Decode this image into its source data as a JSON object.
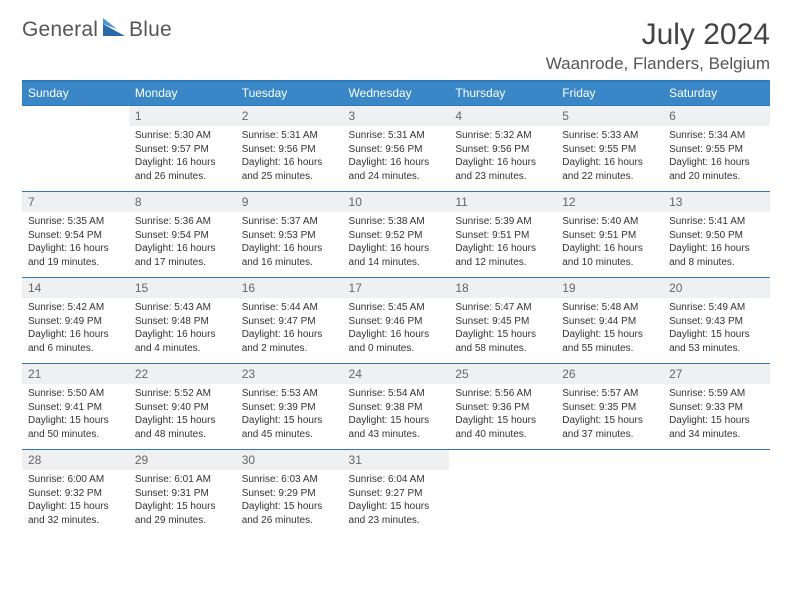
{
  "brand": {
    "part1": "General",
    "part2": "Blue"
  },
  "title": "July 2024",
  "location": "Waanrode, Flanders, Belgium",
  "colors": {
    "header_bg": "#3a87c8",
    "rule": "#2f79b8",
    "daynum_bg": "#eef0f2"
  },
  "day_headers": [
    "Sunday",
    "Monday",
    "Tuesday",
    "Wednesday",
    "Thursday",
    "Friday",
    "Saturday"
  ],
  "weeks": [
    [
      null,
      {
        "n": "1",
        "sr": "5:30 AM",
        "ss": "9:57 PM",
        "dl": "16 hours and 26 minutes."
      },
      {
        "n": "2",
        "sr": "5:31 AM",
        "ss": "9:56 PM",
        "dl": "16 hours and 25 minutes."
      },
      {
        "n": "3",
        "sr": "5:31 AM",
        "ss": "9:56 PM",
        "dl": "16 hours and 24 minutes."
      },
      {
        "n": "4",
        "sr": "5:32 AM",
        "ss": "9:56 PM",
        "dl": "16 hours and 23 minutes."
      },
      {
        "n": "5",
        "sr": "5:33 AM",
        "ss": "9:55 PM",
        "dl": "16 hours and 22 minutes."
      },
      {
        "n": "6",
        "sr": "5:34 AM",
        "ss": "9:55 PM",
        "dl": "16 hours and 20 minutes."
      }
    ],
    [
      {
        "n": "7",
        "sr": "5:35 AM",
        "ss": "9:54 PM",
        "dl": "16 hours and 19 minutes."
      },
      {
        "n": "8",
        "sr": "5:36 AM",
        "ss": "9:54 PM",
        "dl": "16 hours and 17 minutes."
      },
      {
        "n": "9",
        "sr": "5:37 AM",
        "ss": "9:53 PM",
        "dl": "16 hours and 16 minutes."
      },
      {
        "n": "10",
        "sr": "5:38 AM",
        "ss": "9:52 PM",
        "dl": "16 hours and 14 minutes."
      },
      {
        "n": "11",
        "sr": "5:39 AM",
        "ss": "9:51 PM",
        "dl": "16 hours and 12 minutes."
      },
      {
        "n": "12",
        "sr": "5:40 AM",
        "ss": "9:51 PM",
        "dl": "16 hours and 10 minutes."
      },
      {
        "n": "13",
        "sr": "5:41 AM",
        "ss": "9:50 PM",
        "dl": "16 hours and 8 minutes."
      }
    ],
    [
      {
        "n": "14",
        "sr": "5:42 AM",
        "ss": "9:49 PM",
        "dl": "16 hours and 6 minutes."
      },
      {
        "n": "15",
        "sr": "5:43 AM",
        "ss": "9:48 PM",
        "dl": "16 hours and 4 minutes."
      },
      {
        "n": "16",
        "sr": "5:44 AM",
        "ss": "9:47 PM",
        "dl": "16 hours and 2 minutes."
      },
      {
        "n": "17",
        "sr": "5:45 AM",
        "ss": "9:46 PM",
        "dl": "16 hours and 0 minutes."
      },
      {
        "n": "18",
        "sr": "5:47 AM",
        "ss": "9:45 PM",
        "dl": "15 hours and 58 minutes."
      },
      {
        "n": "19",
        "sr": "5:48 AM",
        "ss": "9:44 PM",
        "dl": "15 hours and 55 minutes."
      },
      {
        "n": "20",
        "sr": "5:49 AM",
        "ss": "9:43 PM",
        "dl": "15 hours and 53 minutes."
      }
    ],
    [
      {
        "n": "21",
        "sr": "5:50 AM",
        "ss": "9:41 PM",
        "dl": "15 hours and 50 minutes."
      },
      {
        "n": "22",
        "sr": "5:52 AM",
        "ss": "9:40 PM",
        "dl": "15 hours and 48 minutes."
      },
      {
        "n": "23",
        "sr": "5:53 AM",
        "ss": "9:39 PM",
        "dl": "15 hours and 45 minutes."
      },
      {
        "n": "24",
        "sr": "5:54 AM",
        "ss": "9:38 PM",
        "dl": "15 hours and 43 minutes."
      },
      {
        "n": "25",
        "sr": "5:56 AM",
        "ss": "9:36 PM",
        "dl": "15 hours and 40 minutes."
      },
      {
        "n": "26",
        "sr": "5:57 AM",
        "ss": "9:35 PM",
        "dl": "15 hours and 37 minutes."
      },
      {
        "n": "27",
        "sr": "5:59 AM",
        "ss": "9:33 PM",
        "dl": "15 hours and 34 minutes."
      }
    ],
    [
      {
        "n": "28",
        "sr": "6:00 AM",
        "ss": "9:32 PM",
        "dl": "15 hours and 32 minutes."
      },
      {
        "n": "29",
        "sr": "6:01 AM",
        "ss": "9:31 PM",
        "dl": "15 hours and 29 minutes."
      },
      {
        "n": "30",
        "sr": "6:03 AM",
        "ss": "9:29 PM",
        "dl": "15 hours and 26 minutes."
      },
      {
        "n": "31",
        "sr": "6:04 AM",
        "ss": "9:27 PM",
        "dl": "15 hours and 23 minutes."
      },
      null,
      null,
      null
    ]
  ],
  "labels": {
    "sunrise": "Sunrise:",
    "sunset": "Sunset:",
    "daylight": "Daylight:"
  }
}
